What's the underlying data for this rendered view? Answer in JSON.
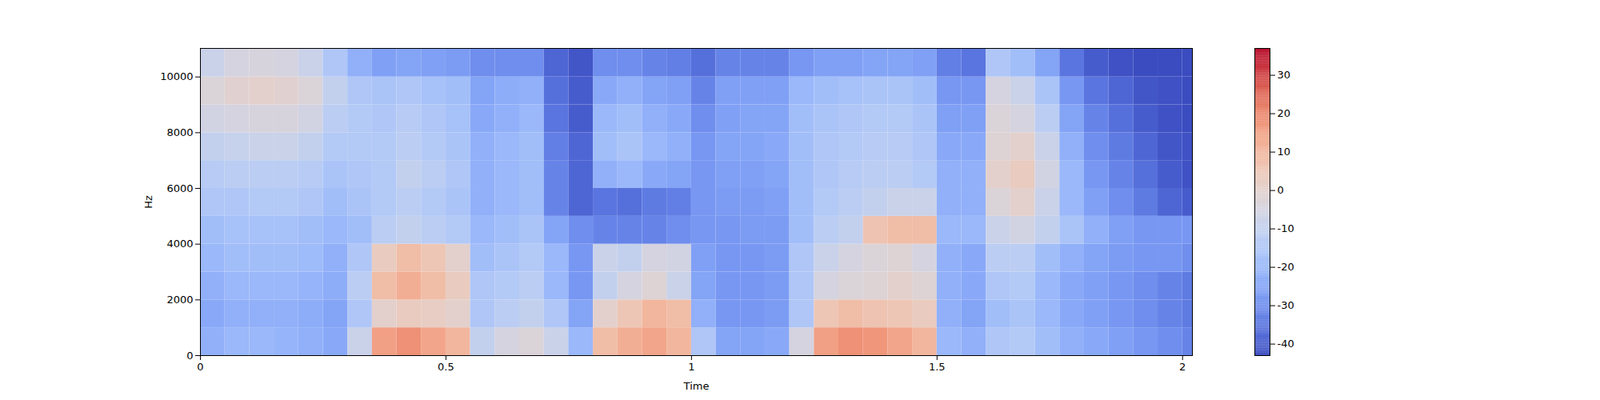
{
  "chart_data": {
    "type": "heatmap",
    "x_label": "Time",
    "y_label": "Hz",
    "x_bins": [
      0,
      0.05,
      0.1,
      0.15,
      0.2,
      0.25,
      0.3,
      0.35,
      0.4,
      0.45,
      0.5,
      0.55,
      0.6,
      0.65,
      0.7,
      0.75,
      0.8,
      0.85,
      0.9,
      0.95,
      1,
      1.05,
      1.1,
      1.15,
      1.2,
      1.25,
      1.3,
      1.35,
      1.4,
      1.45,
      1.5,
      1.55,
      1.6,
      1.65,
      1.7,
      1.75,
      1.8,
      1.85,
      1.9,
      1.95,
      2,
      2.02
    ],
    "y_bins": [
      0,
      1000,
      2000,
      3000,
      4000,
      5000,
      6000,
      7000,
      8000,
      9000,
      10000,
      11025
    ],
    "values": [
      [
        -22,
        -20,
        -20,
        -21,
        -22,
        -24,
        -8,
        15,
        18,
        14,
        10,
        -10,
        -5,
        -3,
        -8,
        -20,
        8,
        12,
        14,
        10,
        -15,
        -25,
        -25,
        -24,
        -5,
        15,
        18,
        17,
        14,
        10,
        -20,
        -22,
        -15,
        -14,
        -18,
        -22,
        -24,
        -26,
        -28,
        -30,
        -32
      ],
      [
        -24,
        -22,
        -22,
        -22,
        -23,
        -25,
        -15,
        0,
        3,
        2,
        0,
        -15,
        -12,
        -10,
        -15,
        -25,
        0,
        5,
        10,
        8,
        -22,
        -28,
        -28,
        -27,
        -15,
        5,
        8,
        6,
        5,
        3,
        -22,
        -25,
        -18,
        -16,
        -20,
        -24,
        -26,
        -28,
        -30,
        -32,
        -34
      ],
      [
        -22,
        -20,
        -20,
        -20,
        -21,
        -23,
        -12,
        8,
        12,
        8,
        3,
        -15,
        -14,
        -12,
        -20,
        -28,
        -10,
        -5,
        -2,
        -8,
        -25,
        -28,
        -28,
        -27,
        -15,
        -5,
        -3,
        -2,
        0,
        -2,
        -22,
        -24,
        -15,
        -14,
        -20,
        -24,
        -26,
        -28,
        -30,
        -32,
        -34
      ],
      [
        -20,
        -18,
        -18,
        -18,
        -19,
        -22,
        -15,
        3,
        8,
        5,
        0,
        -18,
        -16,
        -14,
        -20,
        -28,
        -8,
        -10,
        -5,
        -6,
        -26,
        -28,
        -28,
        -27,
        -15,
        -8,
        -5,
        -3,
        -2,
        -5,
        -22,
        -24,
        -12,
        -12,
        -18,
        -22,
        -25,
        -27,
        -28,
        -28,
        -30
      ],
      [
        -18,
        -17,
        -17,
        -17,
        -18,
        -20,
        -18,
        -12,
        -10,
        -12,
        -14,
        -20,
        -18,
        -16,
        -25,
        -30,
        -32,
        -32,
        -32,
        -30,
        -28,
        -28,
        -27,
        -27,
        -18,
        -12,
        -10,
        6,
        8,
        8,
        -20,
        -20,
        -8,
        -6,
        -10,
        -16,
        -22,
        -26,
        -28,
        -28,
        -28
      ],
      [
        -15,
        -15,
        -14,
        -14,
        -15,
        -18,
        -16,
        -14,
        -12,
        -14,
        -16,
        -22,
        -20,
        -18,
        -32,
        -38,
        -35,
        -36,
        -34,
        -33,
        -28,
        -27,
        -27,
        -26,
        -18,
        -14,
        -12,
        -10,
        -8,
        -8,
        -22,
        -22,
        -3,
        0,
        -8,
        -20,
        -26,
        -30,
        -34,
        -38,
        -40
      ],
      [
        -13,
        -12,
        -12,
        -12,
        -13,
        -16,
        -15,
        -14,
        -10,
        -12,
        -15,
        -22,
        -20,
        -18,
        -32,
        -38,
        -22,
        -20,
        -24,
        -25,
        -28,
        -26,
        -26,
        -25,
        -18,
        -15,
        -13,
        -12,
        -12,
        -14,
        -22,
        -22,
        0,
        3,
        -6,
        -20,
        -28,
        -32,
        -36,
        -40,
        -42
      ],
      [
        -10,
        -9,
        -8,
        -8,
        -10,
        -14,
        -14,
        -14,
        -12,
        -14,
        -16,
        -22,
        -20,
        -18,
        -33,
        -38,
        -18,
        -16,
        -20,
        -22,
        -28,
        -25,
        -25,
        -24,
        -18,
        -15,
        -14,
        -13,
        -13,
        -15,
        -24,
        -24,
        -2,
        0,
        -8,
        -22,
        -30,
        -34,
        -38,
        -41,
        -42
      ],
      [
        -6,
        -5,
        -4,
        -4,
        -6,
        -12,
        -14,
        -15,
        -13,
        -15,
        -17,
        -24,
        -22,
        -20,
        -35,
        -40,
        -20,
        -18,
        -22,
        -24,
        -30,
        -26,
        -25,
        -25,
        -18,
        -16,
        -15,
        -14,
        -14,
        -16,
        -26,
        -26,
        -3,
        -5,
        -12,
        -25,
        -32,
        -36,
        -40,
        -42,
        -43
      ],
      [
        -3,
        -1,
        0,
        -1,
        -3,
        -10,
        -15,
        -16,
        -15,
        -17,
        -18,
        -25,
        -23,
        -22,
        -36,
        -40,
        -24,
        -22,
        -25,
        -26,
        -32,
        -26,
        -26,
        -26,
        -20,
        -18,
        -17,
        -16,
        -16,
        -18,
        -28,
        -28,
        -5,
        -8,
        -16,
        -28,
        -35,
        -38,
        -41,
        -42,
        -43
      ],
      [
        -8,
        -5,
        -4,
        -5,
        -8,
        -15,
        -22,
        -26,
        -25,
        -26,
        -27,
        -30,
        -30,
        -30,
        -38,
        -41,
        -30,
        -30,
        -32,
        -33,
        -36,
        -32,
        -32,
        -32,
        -28,
        -26,
        -26,
        -25,
        -25,
        -26,
        -33,
        -35,
        -15,
        -18,
        -25,
        -35,
        -40,
        -42,
        -43,
        -43,
        -43
      ]
    ],
    "xlim": [
      0,
      2.02
    ],
    "ylim": [
      0,
      11025
    ],
    "xticks": [
      0,
      0.5,
      1,
      1.5,
      2
    ],
    "yticks": [
      0,
      2000,
      4000,
      6000,
      8000,
      10000
    ],
    "color": "coolwarm",
    "colorbar": {
      "range": [
        -43,
        37
      ],
      "ticks": [
        -40,
        -30,
        -20,
        -10,
        0,
        10,
        20,
        30
      ]
    }
  }
}
